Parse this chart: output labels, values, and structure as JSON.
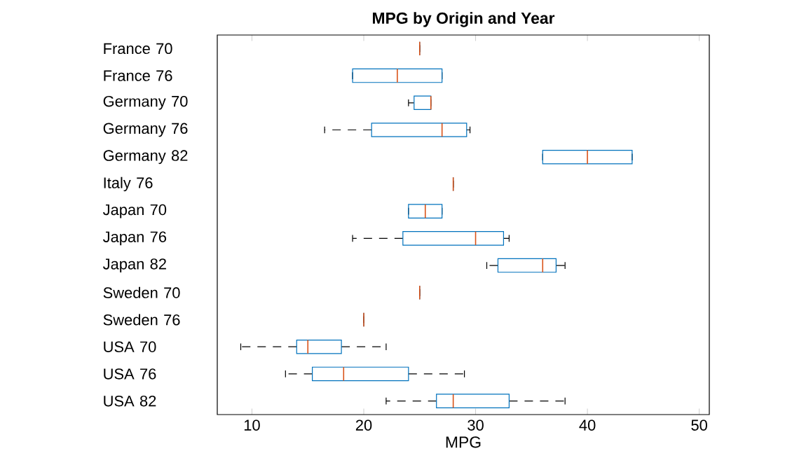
{
  "chart_data": {
    "type": "box",
    "title": "MPG by Origin and Year",
    "xlabel": "MPG",
    "orientation": "horizontal",
    "color": "#0072bd",
    "categories": [
      "France 70",
      "France 76",
      "Germany 70",
      "Germany 76",
      "Germany 82",
      "Italy 76",
      "Japan 70",
      "Japan 76",
      "Japan 82",
      "Sweden 70",
      "Sweden 76",
      "USA 70",
      "USA 76",
      "USA 82"
    ],
    "boxes": [
      {
        "low": 25,
        "q1": 25,
        "median": 25,
        "q3": 25,
        "high": 25
      },
      {
        "low": 19,
        "q1": 19,
        "median": 23,
        "q3": 27,
        "high": 27
      },
      {
        "low": 24,
        "q1": 24.5,
        "median": 26,
        "q3": 26,
        "high": 26
      },
      {
        "low": 16.5,
        "q1": 20.7,
        "median": 27,
        "q3": 29.2,
        "high": 29.5
      },
      {
        "low": 36,
        "q1": 36,
        "median": 40,
        "q3": 44,
        "high": 44
      },
      {
        "low": 28,
        "q1": 28,
        "median": 28,
        "q3": 28,
        "high": 28
      },
      {
        "low": 24,
        "q1": 24,
        "median": 25.5,
        "q3": 27,
        "high": 27
      },
      {
        "low": 19,
        "q1": 23.5,
        "median": 30,
        "q3": 32.5,
        "high": 33
      },
      {
        "low": 31,
        "q1": 32,
        "median": 36,
        "q3": 37.2,
        "high": 38
      },
      {
        "low": 25,
        "q1": 25,
        "median": 25,
        "q3": 25,
        "high": 25
      },
      {
        "low": 20,
        "q1": 20,
        "median": 20,
        "q3": 20,
        "high": 20
      },
      {
        "low": 9,
        "q1": 14,
        "median": 15,
        "q3": 18,
        "high": 22
      },
      {
        "low": 13,
        "q1": 15.4,
        "median": 18.2,
        "q3": 24,
        "high": 29
      },
      {
        "low": 22,
        "q1": 26.5,
        "median": 28,
        "q3": 33,
        "high": 38
      }
    ],
    "xlim": [
      6.9,
      50.9
    ],
    "xticks": [
      10,
      20,
      30,
      40,
      50
    ]
  }
}
